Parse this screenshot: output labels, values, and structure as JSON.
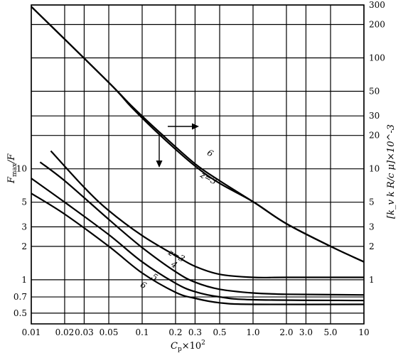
{
  "chart_data": {
    "type": "line",
    "x_scale": "log",
    "y_scale": "log",
    "xlim": [
      0.01,
      10
    ],
    "ylim_left": [
      0.4,
      300
    ],
    "ylim_right": [
      0.4,
      300
    ],
    "grid": true,
    "xlabel_base": "C",
    "xlabel_sub": "p",
    "xlabel_rest": "×10",
    "xlabel_sup": "2",
    "ylabel_left_main": "F",
    "ylabel_left_sub": "max",
    "ylabel_left_rest": "/F",
    "ylabel_right": "[k_v k R/c μ]×10^-3",
    "x_ticks": [
      {
        "value": 0.01,
        "label": "0.01"
      },
      {
        "value": 0.02,
        "label": "0.02"
      },
      {
        "value": 0.03,
        "label": "0.03"
      },
      {
        "value": 0.05,
        "label": "0.05"
      },
      {
        "value": 0.1,
        "label": "0.1"
      },
      {
        "value": 0.2,
        "label": "0.2"
      },
      {
        "value": 0.3,
        "label": "0.3"
      },
      {
        "value": 0.5,
        "label": "0.5"
      },
      {
        "value": 1.0,
        "label": "1.0"
      },
      {
        "value": 2.0,
        "label": "2.0"
      },
      {
        "value": 3.0,
        "label": "3.0"
      },
      {
        "value": 5.0,
        "label": "5.0"
      },
      {
        "value": 10,
        "label": "10"
      }
    ],
    "y_ticks_left": [
      {
        "value": 0.5,
        "label": "0.5"
      },
      {
        "value": 0.7,
        "label": "0.7"
      },
      {
        "value": 1,
        "label": "1"
      },
      {
        "value": 2,
        "label": "2"
      },
      {
        "value": 3,
        "label": "3"
      },
      {
        "value": 5,
        "label": "5"
      },
      {
        "value": 10,
        "label": "10"
      }
    ],
    "y_ticks_right": [
      {
        "value": 1,
        "label": "1"
      },
      {
        "value": 2,
        "label": "2"
      },
      {
        "value": 3,
        "label": "3"
      },
      {
        "value": 5,
        "label": "5"
      },
      {
        "value": 10,
        "label": "10"
      },
      {
        "value": 20,
        "label": "20"
      },
      {
        "value": 30,
        "label": "30"
      },
      {
        "value": 50,
        "label": "50"
      },
      {
        "value": 100,
        "label": "100"
      },
      {
        "value": 200,
        "label": "200"
      },
      {
        "value": 300,
        "label": "300"
      }
    ],
    "series_left": [
      {
        "name": "z=3",
        "points": [
          [
            0.015,
            14.5
          ],
          [
            0.03,
            6.8
          ],
          [
            0.05,
            4.2
          ],
          [
            0.1,
            2.5
          ],
          [
            0.2,
            1.65
          ],
          [
            0.3,
            1.32
          ],
          [
            0.5,
            1.12
          ],
          [
            1.0,
            1.05
          ],
          [
            2.0,
            1.05
          ],
          [
            10,
            1.05
          ]
        ]
      },
      {
        "name": "4",
        "points": [
          [
            0.012,
            11.5
          ],
          [
            0.02,
            7.8
          ],
          [
            0.05,
            3.5
          ],
          [
            0.1,
            1.95
          ],
          [
            0.2,
            1.18
          ],
          [
            0.3,
            0.95
          ],
          [
            0.5,
            0.82
          ],
          [
            1.0,
            0.76
          ],
          [
            2.0,
            0.74
          ],
          [
            10,
            0.73
          ]
        ]
      },
      {
        "name": "5",
        "points": [
          [
            0.01,
            8.2
          ],
          [
            0.02,
            5.0
          ],
          [
            0.05,
            2.55
          ],
          [
            0.1,
            1.45
          ],
          [
            0.2,
            0.93
          ],
          [
            0.3,
            0.78
          ],
          [
            0.5,
            0.7
          ],
          [
            1.0,
            0.66
          ],
          [
            10,
            0.65
          ]
        ]
      },
      {
        "name": "6",
        "points": [
          [
            0.01,
            6.0
          ],
          [
            0.02,
            3.9
          ],
          [
            0.05,
            2.0
          ],
          [
            0.1,
            1.15
          ],
          [
            0.2,
            0.77
          ],
          [
            0.3,
            0.68
          ],
          [
            0.5,
            0.62
          ],
          [
            1.0,
            0.6
          ],
          [
            10,
            0.6
          ]
        ]
      }
    ],
    "series_right": [
      {
        "name": "6",
        "points": [
          [
            0.01,
            290
          ],
          [
            0.05,
            60
          ],
          [
            0.08,
            36
          ],
          [
            0.15,
            19.5
          ],
          [
            0.3,
            10.6
          ],
          [
            0.5,
            7.4
          ],
          [
            1.0,
            5.05
          ],
          [
            2.0,
            3.2
          ],
          [
            5.0,
            2.0
          ],
          [
            10,
            1.45
          ]
        ]
      },
      {
        "name": "z=3",
        "points": [
          [
            0.01,
            290
          ],
          [
            0.05,
            60
          ],
          [
            0.08,
            37
          ],
          [
            0.15,
            20.5
          ],
          [
            0.3,
            11.1
          ],
          [
            0.5,
            7.8
          ],
          [
            1.0,
            5.05
          ],
          [
            2.0,
            3.2
          ],
          [
            5.0,
            2.0
          ],
          [
            10,
            1.45
          ]
        ]
      }
    ],
    "curve_labels": [
      {
        "text": "z=3",
        "x": 0.17,
        "y": 1.7
      },
      {
        "text": "4",
        "x": 0.18,
        "y": 1.33
      },
      {
        "text": "5",
        "x": 0.12,
        "y": 1.03
      },
      {
        "text": "6",
        "x": 0.095,
        "y": 0.87
      },
      {
        "text": "6",
        "x": 0.38,
        "y": 13.5
      },
      {
        "text": "z=3",
        "x": 0.33,
        "y": 8.5
      }
    ]
  }
}
